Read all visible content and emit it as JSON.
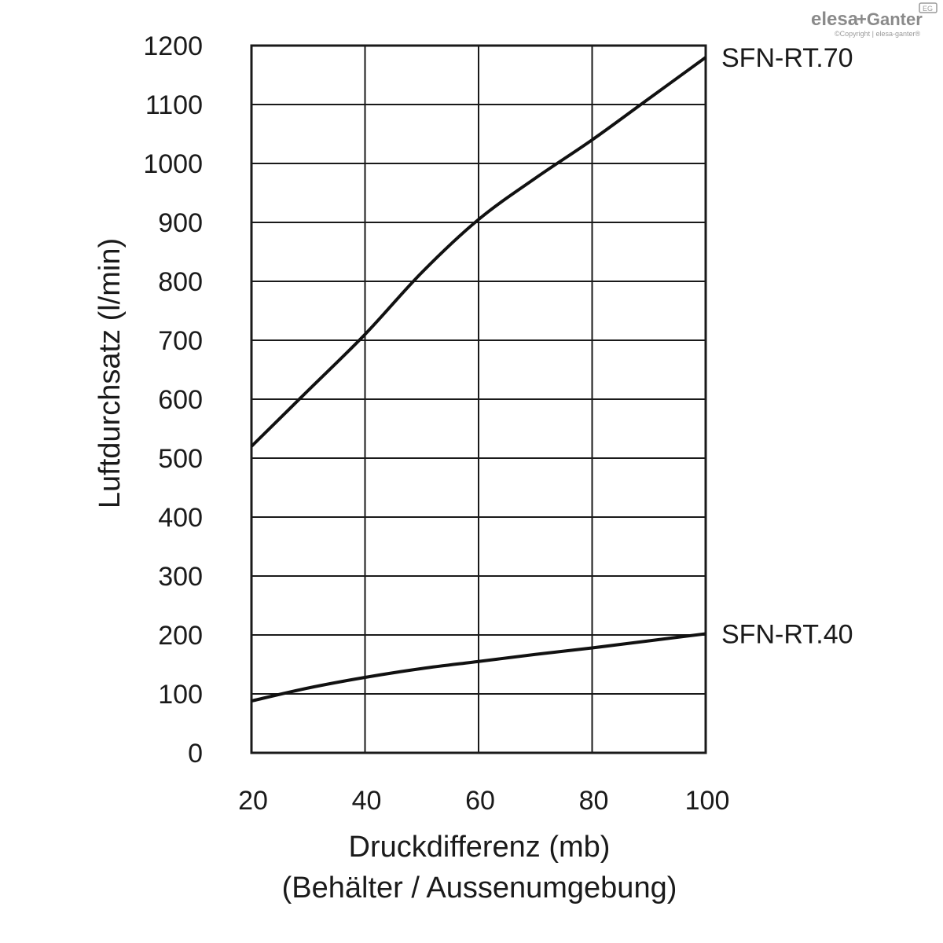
{
  "brand": {
    "name_left": "elesa",
    "name_right": "+Ganter",
    "badge": "EG",
    "copyright": "©Copyright | elesa-ganter®"
  },
  "chart_data": {
    "type": "line",
    "title": "",
    "xlabel": "Druckdifferenz (mb)",
    "xlabel_line2": "(Behälter / Aussenumgebung)",
    "ylabel": "Luftdurchsatz (l/min)",
    "xlim": [
      20,
      100
    ],
    "ylim": [
      0,
      1200
    ],
    "x_ticks": [
      20,
      40,
      60,
      80,
      100
    ],
    "y_ticks": [
      0,
      100,
      200,
      300,
      400,
      500,
      600,
      700,
      800,
      900,
      1000,
      1100,
      1200
    ],
    "grid": true,
    "legend": "inline labels at right end of lines",
    "series": [
      {
        "name": "SFN-RT.70",
        "x": [
          20,
          30,
          40,
          50,
          60,
          70,
          80,
          90,
          100
        ],
        "y": [
          520,
          615,
          710,
          815,
          905,
          975,
          1040,
          1110,
          1180
        ]
      },
      {
        "name": "SFN-RT.40",
        "x": [
          20,
          30,
          40,
          50,
          60,
          70,
          80,
          90,
          100
        ],
        "y": [
          88,
          110,
          128,
          143,
          155,
          167,
          178,
          190,
          202
        ]
      }
    ]
  }
}
